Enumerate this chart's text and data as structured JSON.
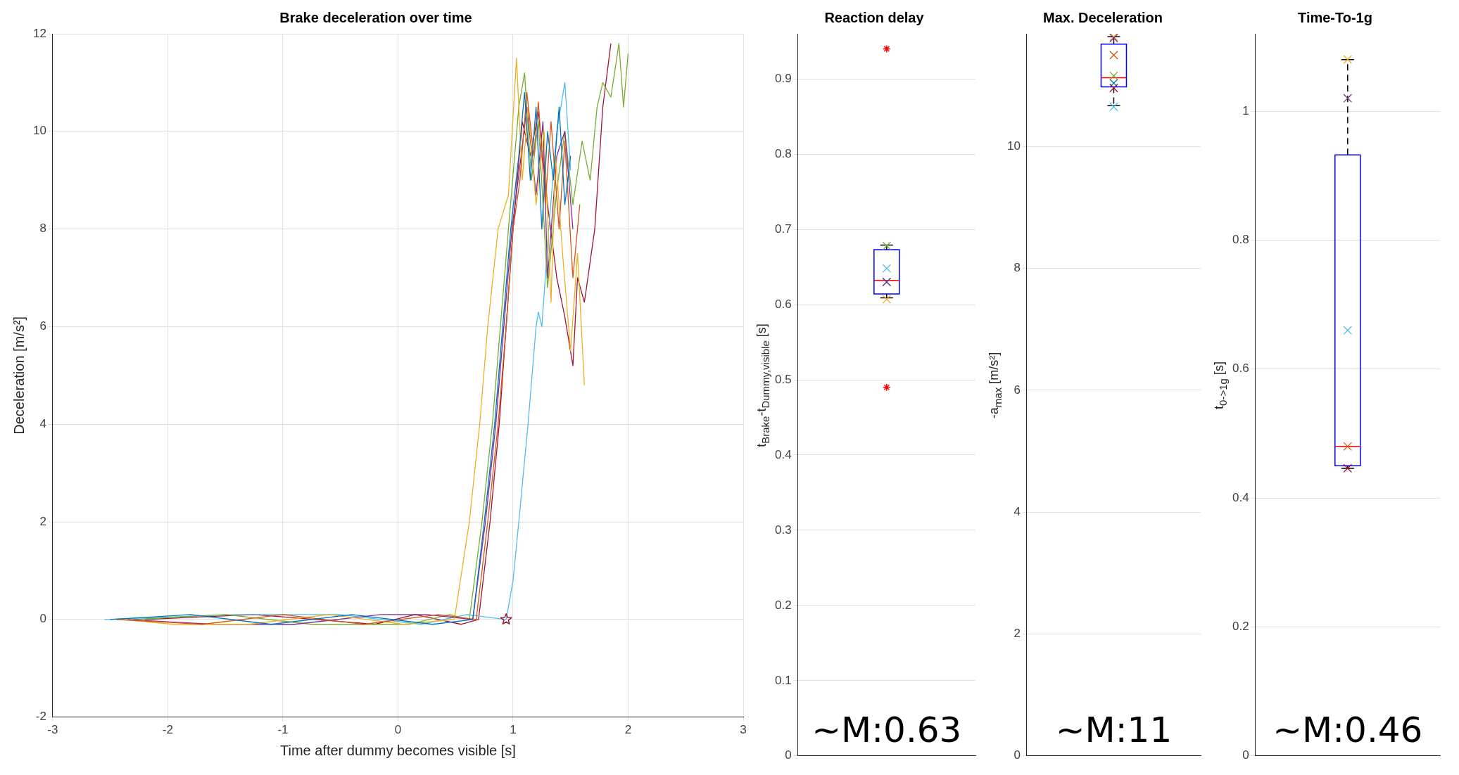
{
  "chart_data": [
    {
      "type": "line",
      "title": "Brake deceleration over time",
      "xlabel": "Time after dummy becomes visible [s]",
      "ylabel": "Deceleration [m/s²]",
      "xlim": [
        -3,
        3
      ],
      "xticks": [
        -3,
        -2,
        -1,
        0,
        1,
        2,
        3
      ],
      "ylim": [
        -2,
        12
      ],
      "yticks": [
        -2,
        0,
        2,
        4,
        6,
        8,
        10,
        12
      ],
      "grid": true,
      "line_style": "solid",
      "marker": "none",
      "series": [
        {
          "color": "#0072bd",
          "x": [
            -2.5,
            -1.8,
            -1.1,
            -0.4,
            0.3,
            0.65,
            0.75,
            0.84,
            0.91,
            0.98,
            1.05,
            1.1,
            1.15,
            1.2,
            1.25,
            1.3,
            1.35,
            1.4,
            1.45,
            1.5
          ],
          "values": [
            0,
            0.1,
            -0.1,
            0.1,
            -0.1,
            0,
            2,
            4,
            6,
            8,
            9.5,
            10.8,
            9,
            10.5,
            8,
            10,
            9,
            10.5,
            8.5,
            9.5
          ]
        },
        {
          "color": "#d95319",
          "x": [
            -2.45,
            -1.7,
            -1.0,
            -0.3,
            0.35,
            0.68,
            0.78,
            0.87,
            0.94,
            1.0,
            1.06,
            1.12,
            1.18,
            1.22,
            1.28,
            1.33,
            1.4,
            1.45,
            1.52,
            1.58
          ],
          "values": [
            0,
            -0.1,
            0.1,
            -0.1,
            0.1,
            0,
            2,
            4,
            6,
            8,
            9,
            10.8,
            9.5,
            10.6,
            8.5,
            10.2,
            8,
            9.8,
            7,
            8.5
          ]
        },
        {
          "color": "#edb120",
          "x": [
            -2.4,
            -1.95,
            -1.3,
            -0.6,
            0.05,
            0.49,
            0.62,
            0.71,
            0.78,
            0.87,
            0.96,
            1.03,
            1.08,
            1.13,
            1.2,
            1.27,
            1.33,
            1.37,
            1.43,
            1.5,
            1.56,
            1.62
          ],
          "values": [
            0,
            -0.1,
            -0.1,
            0.1,
            -0.1,
            0,
            2,
            4,
            6,
            8,
            8.7,
            11.5,
            9,
            10.5,
            8.5,
            10,
            6.5,
            9.5,
            7.5,
            5.5,
            7.5,
            4.8
          ]
        },
        {
          "color": "#7e2f8e",
          "x": [
            -2.35,
            -1.6,
            -0.9,
            -0.15,
            0.25,
            0.65,
            0.76,
            0.85,
            0.92,
            0.99,
            1.06,
            1.12,
            1.2,
            1.26,
            1.3,
            1.38,
            1.45,
            1.52
          ],
          "values": [
            0,
            -0.1,
            -0.1,
            0.1,
            0.1,
            0,
            2,
            4,
            6,
            8,
            9.3,
            10.5,
            8.7,
            10.2,
            7,
            9.5,
            10,
            8
          ]
        },
        {
          "color": "#77ac30",
          "x": [
            -2.3,
            -1.5,
            -0.75,
            0.1,
            0.45,
            0.62,
            0.73,
            0.82,
            0.89,
            0.96,
            1.05,
            1.1,
            1.16,
            1.22,
            1.3,
            1.38,
            1.45,
            1.52,
            1.6,
            1.67,
            1.73,
            1.78,
            1.85,
            1.92,
            1.96,
            2.0
          ],
          "values": [
            0,
            0.1,
            -0.1,
            -0.1,
            0.1,
            0,
            2,
            4,
            6,
            8,
            10.5,
            11.2,
            9,
            10.2,
            6.8,
            8.8,
            10,
            8.5,
            9.8,
            9,
            10.5,
            11,
            10.7,
            11.8,
            10.5,
            11.6
          ]
        },
        {
          "color": "#4dbeee",
          "x": [
            -2.55,
            -1.4,
            -0.5,
            0.2,
            0.6,
            0.94,
            1.0,
            1.05,
            1.13,
            1.2,
            1.22,
            1.25,
            1.31,
            1.38,
            1.45,
            1.5
          ],
          "values": [
            0,
            0.1,
            0.1,
            -0.1,
            0.1,
            0,
            0.8,
            2,
            4,
            6,
            6.3,
            6,
            8,
            10,
            11,
            9.2
          ]
        },
        {
          "color": "#a2142f",
          "x": [
            -2.2,
            -1.25,
            -0.2,
            0.15,
            0.55,
            0.7,
            0.8,
            0.88,
            0.94,
            1.0,
            1.08,
            1.15,
            1.22,
            1.3,
            1.38,
            1.45,
            1.52,
            1.56,
            1.62,
            1.71,
            1.78,
            1.85
          ],
          "values": [
            0,
            0.1,
            -0.1,
            0.1,
            -0.1,
            0,
            2,
            4,
            6,
            8,
            10.2,
            9.5,
            10.4,
            8.5,
            7,
            6.2,
            5.2,
            7,
            6.5,
            8,
            10.5,
            11.8
          ]
        },
        {
          "type": "scatter",
          "color": "#a2142f",
          "marker": "star",
          "x": [
            0.94
          ],
          "values": [
            0
          ]
        }
      ]
    },
    {
      "type": "box",
      "title": "Reaction delay",
      "ylabel": "t$_{Brake}$-t$_{Dummy,visible}$ [s]",
      "categories": [
        null
      ],
      "ylim": [
        0,
        0.96
      ],
      "yticks": [
        0,
        0.1,
        0.2,
        0.3,
        0.4,
        0.5,
        0.6,
        0.7,
        0.8,
        0.9
      ],
      "grid": "y",
      "tick_labels": "y",
      "annotations": [
        "~M:0.63"
      ],
      "boxes": [
        {
          "low": 0.609,
          "q1": 0.614,
          "median": 0.632,
          "q3": 0.673,
          "high": 0.679,
          "outliers": [
            0.94,
            0.49
          ]
        }
      ],
      "series": [
        {
          "type": "scatter",
          "marker": "cross",
          "x": [
            null,
            null,
            null,
            null,
            null,
            null,
            null
          ],
          "values": [
            0.63,
            null,
            0.607,
            0.63,
            0.678,
            0.648,
            null
          ],
          "colors": [
            "#0072bd",
            "#d95319",
            "#edb120",
            "#7e2f8e",
            "#77ac30",
            "#4dbeee",
            "#a2142f"
          ]
        }
      ]
    },
    {
      "type": "box",
      "title": "Max. Deceleration",
      "ylabel": "-a$_{max}$ [m/s²]",
      "categories": [
        null
      ],
      "ylim": [
        0,
        11.85
      ],
      "yticks": [
        0,
        2,
        4,
        6,
        8,
        10
      ],
      "grid": "y",
      "tick_labels": "y",
      "annotations": [
        "~M:11"
      ],
      "boxes": [
        {
          "low": 10.67,
          "q1": 10.98,
          "median": 11.13,
          "q3": 11.68,
          "high": 11.8
        }
      ],
      "series": [
        {
          "type": "scatter",
          "marker": "cross",
          "x": [
            null,
            null,
            null,
            null,
            null,
            null,
            null
          ],
          "values": [
            11.04,
            11.5,
            11.8,
            11.78,
            11.16,
            10.65,
            10.96
          ],
          "colors": [
            "#0072bd",
            "#d95319",
            "#edb120",
            "#7e2f8e",
            "#77ac30",
            "#4dbeee",
            "#a2142f"
          ]
        }
      ]
    },
    {
      "type": "box",
      "title": "Time-To-1g",
      "ylabel": "t$_{0->1g}$ [s]",
      "categories": [
        null
      ],
      "ylim": [
        0,
        1.12
      ],
      "yticks": [
        0,
        0.2,
        0.4,
        0.6,
        0.8,
        1
      ],
      "grid": "y",
      "tick_labels": "y",
      "annotations": [
        "~M:0.46"
      ],
      "boxes": [
        {
          "low": 0.446,
          "q1": 0.45,
          "median": 0.48,
          "q3": 0.932,
          "high": 1.08
        }
      ],
      "series": [
        {
          "type": "scatter",
          "marker": "cross",
          "x": [
            null,
            null,
            null,
            null,
            null,
            null,
            null
          ],
          "values": [
            null,
            0.48,
            1.08,
            1.02,
            null,
            0.66,
            0.446
          ],
          "colors": [
            "#0072bd",
            "#d95319",
            "#edb120",
            "#7e2f8e",
            "#77ac30",
            "#4dbeee",
            "#a2142f"
          ]
        }
      ]
    }
  ]
}
